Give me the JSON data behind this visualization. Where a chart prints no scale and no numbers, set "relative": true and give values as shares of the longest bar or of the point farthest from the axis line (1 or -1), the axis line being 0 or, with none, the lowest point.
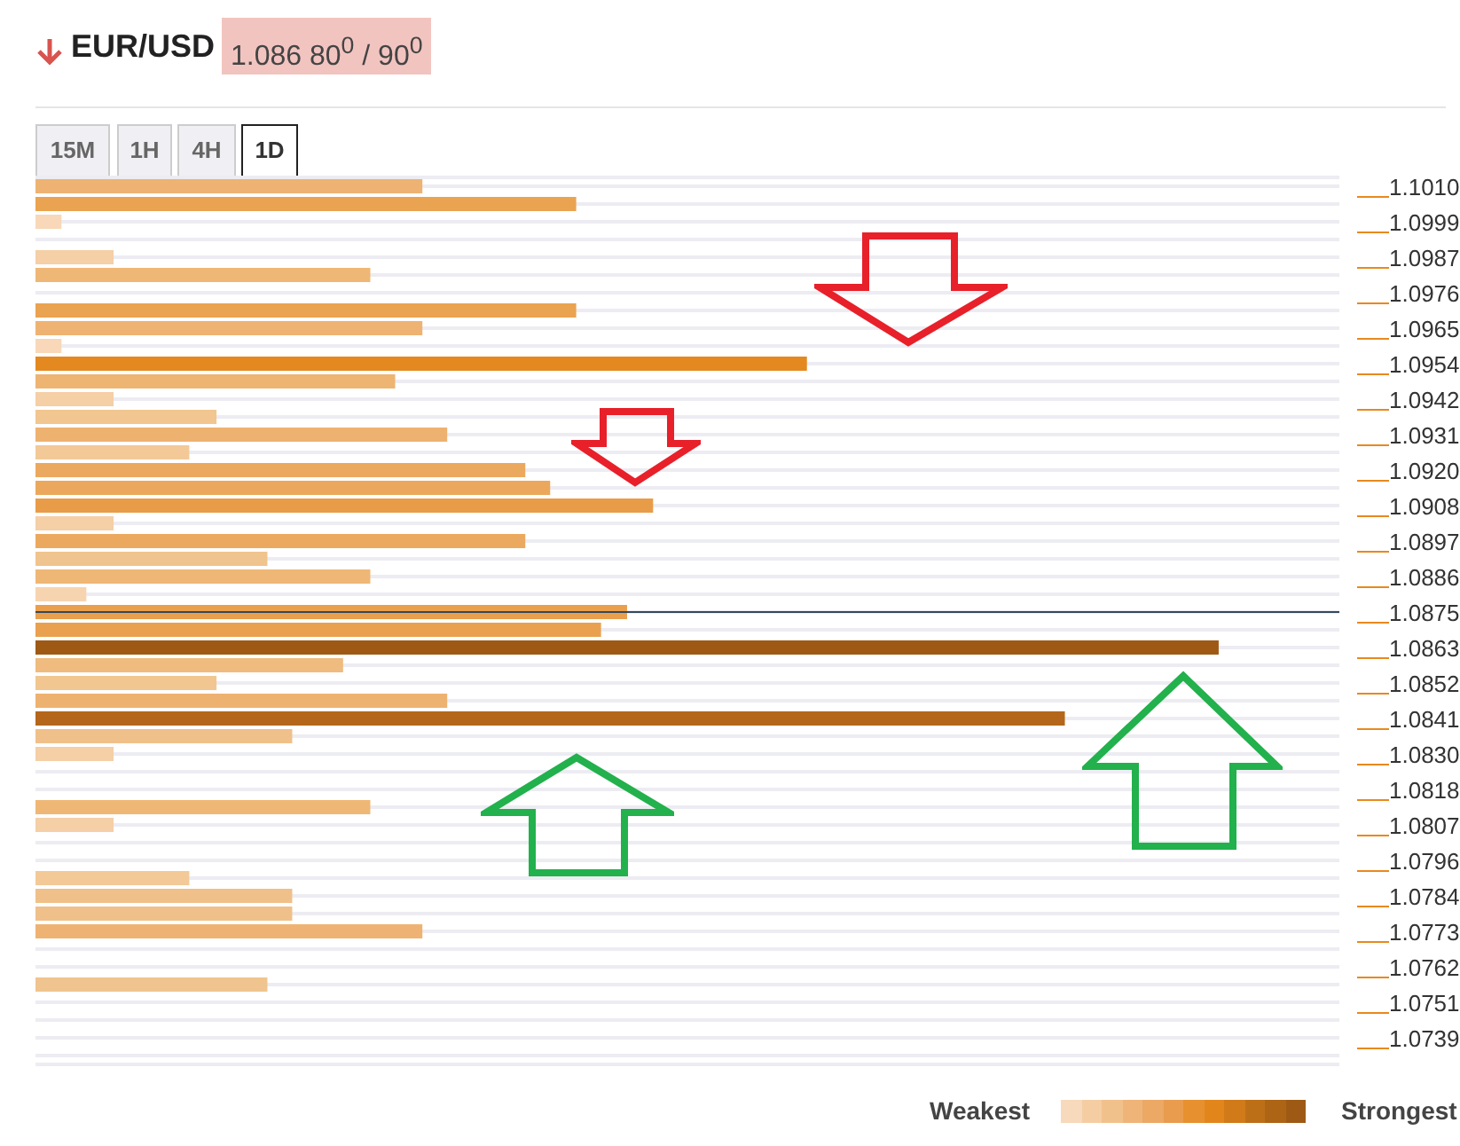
{
  "chart_data": {
    "type": "bar",
    "orientation": "horizontal",
    "relative": true,
    "title": "EUR/USD",
    "subtitle": "1.086 80$^{0}$ / 90$^{0}$",
    "categories": [
      "1.1010",
      null,
      "1.0999",
      null,
      "1.0987",
      null,
      "1.0976",
      null,
      "1.0965",
      null,
      "1.0954",
      null,
      "1.0942",
      null,
      "1.0931",
      null,
      "1.0920",
      null,
      "1.0908",
      null,
      "1.0897",
      null,
      "1.0886",
      null,
      "1.0875",
      null,
      "1.0863",
      null,
      "1.0852",
      null,
      "1.0841",
      null,
      "1.0830",
      null,
      "1.0818",
      null,
      "1.0807",
      null,
      "1.0796",
      null,
      "1.0784",
      null,
      "1.0773",
      null,
      "1.0762",
      null,
      "1.0751",
      null,
      "1.0739",
      null
    ],
    "values": [
      0.327,
      0.457,
      0.022,
      null,
      0.066,
      0.283,
      null,
      0.457,
      0.327,
      0.022,
      0.652,
      0.304,
      0.066,
      0.153,
      0.348,
      0.13,
      0.414,
      0.435,
      0.522,
      0.066,
      0.414,
      0.196,
      0.283,
      0.043,
      0.5,
      0.478,
      1,
      0.26,
      0.153,
      0.348,
      0.87,
      0.217,
      0.066,
      null,
      null,
      0.283,
      0.066,
      null,
      null,
      0.13,
      0.217,
      0.217,
      0.327,
      null,
      null,
      0.196,
      null,
      null,
      null,
      null
    ],
    "colors": [
      "#eeb372",
      "#eaa350",
      "#f8d8b8",
      null,
      "#f5cfa6",
      "#efb775",
      null,
      "#eaa350",
      "#eeb372",
      "#f8d8b8",
      "#e4891f",
      "#eeb472",
      "#f5cfa6",
      "#f1c690",
      "#eeb270",
      "#f3c998",
      "#eba95f",
      "#eba85c",
      "#e99c48",
      "#f5cfa6",
      "#eba95f",
      "#f0c48e",
      "#efb775",
      "#f7d4b0",
      "#e99f4c",
      "#e9a14f",
      "#9e5a14",
      "#efbb7e",
      "#f1c690",
      "#eeb270",
      "#b4671a",
      "#f0c08a",
      "#f5cfa6",
      null,
      null,
      "#efb775",
      "#f5cfa6",
      null,
      null,
      "#f3c998",
      "#f0c08a",
      "#f0c08a",
      "#eeb372",
      null,
      null,
      "#f0c48e",
      null,
      null,
      null,
      null
    ],
    "ref_lines": [
      {
        "axis": "y",
        "value": "1.0875",
        "color": "#34495e"
      }
    ],
    "grid": "y",
    "annotations": [
      "15M",
      "1H",
      "4H",
      "1D",
      "Weakest",
      "Strongest"
    ]
  }
}
